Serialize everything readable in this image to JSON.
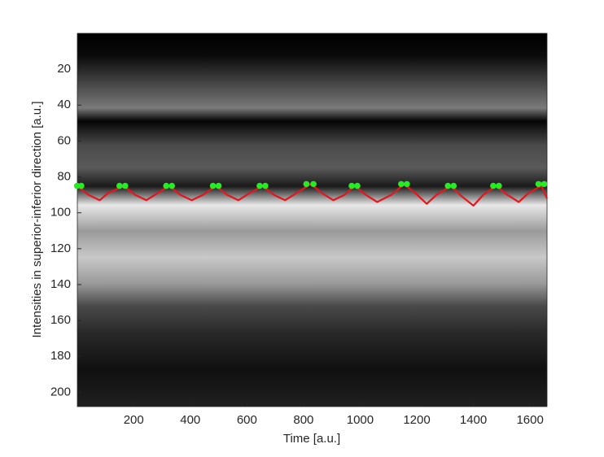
{
  "chart_data": {
    "type": "line",
    "xlabel": "Time [a.u.]",
    "ylabel": "Intensities in superior-inferior direction [a.u.]",
    "xlim": [
      1,
      1660
    ],
    "ylim": [
      0,
      208
    ],
    "y_inverted": true,
    "xticks": [
      200,
      400,
      600,
      800,
      1000,
      1200,
      1400,
      1600
    ],
    "yticks": [
      20,
      40,
      60,
      80,
      100,
      120,
      140,
      160,
      180,
      200
    ],
    "series": [
      {
        "name": "boundary",
        "color": "#e8141c",
        "marker": "line",
        "x": [
          0,
          40,
          80,
          110,
          165,
          205,
          245,
          285,
          325,
          365,
          405,
          445,
          490,
          530,
          570,
          610,
          655,
          695,
          735,
          775,
          825,
          865,
          905,
          945,
          980,
          1020,
          1060,
          1110,
          1155,
          1195,
          1235,
          1270,
          1320,
          1360,
          1400,
          1435,
          1480,
          1520,
          1560,
          1595,
          1640,
          1660
        ],
        "values": [
          85,
          90,
          93,
          89,
          85,
          90,
          93,
          89,
          85,
          90,
          93,
          90,
          85,
          90,
          93,
          89,
          85,
          90,
          93,
          89,
          84,
          89,
          93,
          90,
          85,
          90,
          94,
          90,
          84,
          89,
          95,
          90,
          85,
          91,
          96,
          90,
          85,
          90,
          94,
          89,
          85,
          92
        ]
      },
      {
        "name": "peaks",
        "color": "#22ee22",
        "marker": "dot",
        "x": [
          0,
          15,
          150,
          170,
          315,
          335,
          480,
          500,
          645,
          665,
          810,
          835,
          970,
          990,
          1145,
          1165,
          1310,
          1330,
          1470,
          1490,
          1630,
          1650
        ],
        "values": [
          85,
          85,
          85,
          85,
          85,
          85,
          85,
          85,
          85,
          85,
          84,
          84,
          85,
          85,
          84,
          84,
          85,
          85,
          85,
          85,
          84,
          84
        ]
      }
    ]
  }
}
